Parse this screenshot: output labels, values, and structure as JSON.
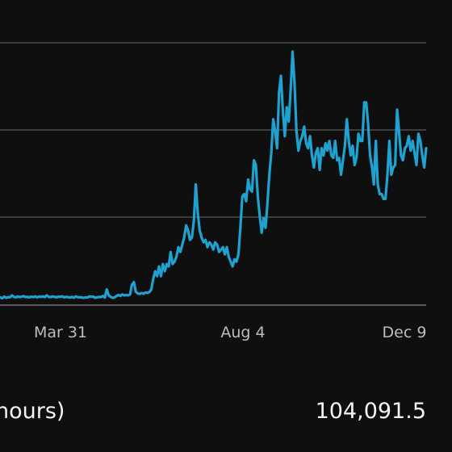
{
  "chart_data": {
    "type": "line",
    "x_tick_labels": [
      "Mar 31",
      "Aug 4",
      "Dec 9"
    ],
    "grid": true,
    "line_color": "#1fa2d0",
    "grid_color": "#5a5a5a",
    "series": [
      {
        "values": [
          0.1,
          0.12,
          0.08,
          0.15,
          0.1,
          0.13,
          0.12,
          0.2,
          0.14,
          0.12,
          0.16,
          0.13,
          0.15,
          0.17,
          0.13,
          0.14,
          0.12,
          0.15,
          0.13,
          0.16,
          0.12,
          0.15,
          0.14,
          0.16,
          0.13,
          0.2,
          0.14,
          0.13,
          0.16,
          0.14,
          0.12,
          0.15,
          0.14,
          0.16,
          0.12,
          0.14,
          0.13,
          0.11,
          0.14,
          0.1,
          0.16,
          0.13,
          0.12,
          0.12,
          0.1,
          0.12,
          0.11,
          0.16,
          0.14,
          0.15,
          0.1,
          0.12,
          0.14,
          0.13,
          0.18,
          0.11,
          0.45,
          0.2,
          0.14,
          0.1,
          0.12,
          0.17,
          0.22,
          0.18,
          0.24,
          0.2,
          0.22,
          0.2,
          0.24,
          0.65,
          0.75,
          0.35,
          0.28,
          0.26,
          0.3,
          0.27,
          0.32,
          0.3,
          0.34,
          0.45,
          0.9,
          1.2,
          1.0,
          1.4,
          1.0,
          1.5,
          1.2,
          1.5,
          1.4,
          2.0,
          1.5,
          1.6,
          1.8,
          2.2,
          2.0,
          2.3,
          2.6,
          3.1,
          2.9,
          2.5,
          2.6,
          3.3,
          4.8,
          3.6,
          2.9,
          2.6,
          2.4,
          2.5,
          2.2,
          2.4,
          2.3,
          2.1,
          2.4,
          2.3,
          2.0,
          2.1,
          2.2,
          1.9,
          2.2,
          1.8,
          1.6,
          1.4,
          1.7,
          1.6,
          1.9,
          3.0,
          4.3,
          4.4,
          4.1,
          5.0,
          4.6,
          4.5,
          5.8,
          5.6,
          4.3,
          3.5,
          2.8,
          3.4,
          3.0,
          4.0,
          5.2,
          6.1,
          7.5,
          7.0,
          6.3,
          8.6,
          9.3,
          7.8,
          6.8,
          8.0,
          7.4,
          8.7,
          10.3,
          9.0,
          7.0,
          6.2,
          6.6,
          6.8,
          7.2,
          6.5,
          6.3,
          6.8,
          6.0,
          5.5,
          6.1,
          6.3,
          5.4,
          6.3,
          6.0,
          6.5,
          6.2,
          6.6,
          6.0,
          5.9,
          6.6,
          5.8,
          5.9,
          5.2,
          5.8,
          6.4,
          7.5,
          6.6,
          6.0,
          6.4,
          5.6,
          5.9,
          6.9,
          6.6,
          6.6,
          8.2,
          8.2,
          7.3,
          6.0,
          5.5,
          4.8,
          6.6,
          4.8,
          4.4,
          4.4,
          4.2,
          4.2,
          5.2,
          6.6,
          5.2,
          5.5,
          5.6,
          7.9,
          7.0,
          6.0,
          5.8,
          6.3,
          6.4,
          6.8,
          6.2,
          6.6,
          6.1,
          5.6,
          6.9,
          6.6,
          6.0,
          5.5,
          6.3
        ]
      }
    ]
  },
  "summary": {
    "label": "hours)",
    "value": "104,091.5"
  }
}
